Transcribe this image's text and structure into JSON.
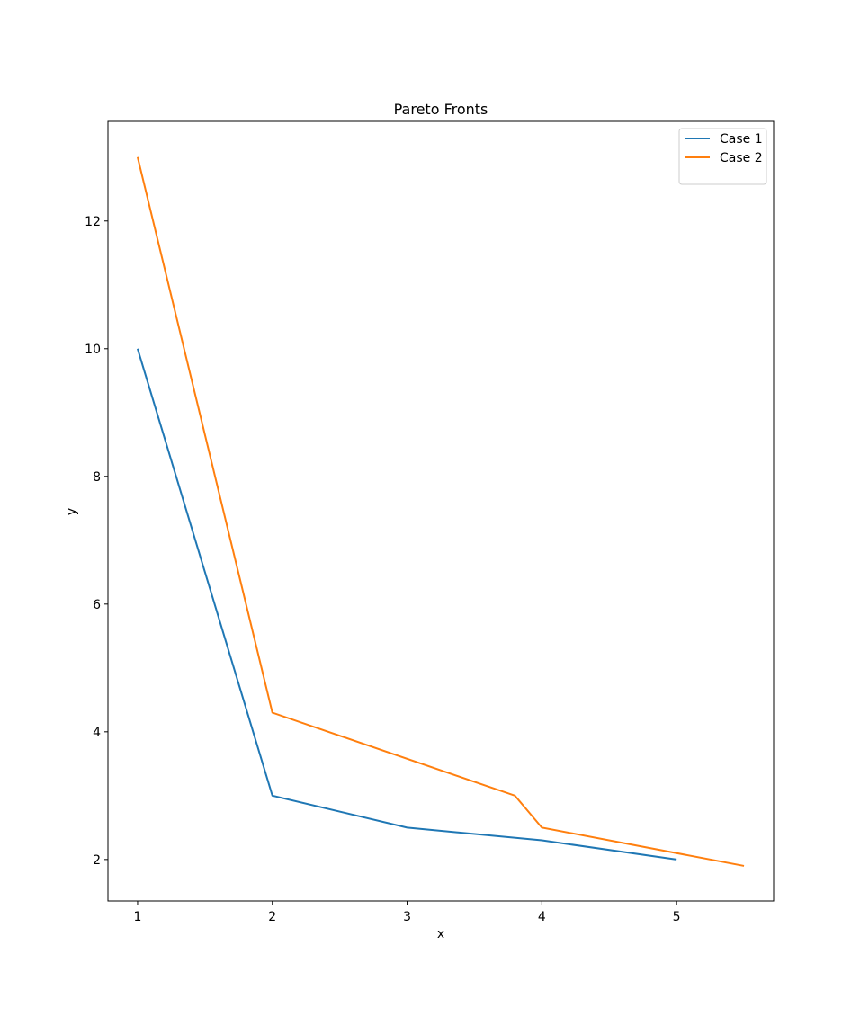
{
  "chart_data": {
    "type": "line",
    "title": "Pareto Fronts",
    "x_label": "x",
    "y_label": "y",
    "series": [
      {
        "name": "Case 1",
        "color": "#1f77b4",
        "x": [
          1,
          2,
          3,
          4,
          5
        ],
        "values": [
          10,
          3,
          2.5,
          2.3,
          2
        ]
      },
      {
        "name": "Case 2",
        "color": "#ff7f0e",
        "x": [
          1,
          2,
          3.8,
          4,
          5.5
        ],
        "values": [
          13,
          4.3,
          3,
          2.5,
          1.9
        ]
      }
    ],
    "xlim": [
      0.78,
      5.72
    ],
    "xticks": [
      1,
      2,
      3,
      4,
      5
    ],
    "ylim": [
      1.35,
      13.56
    ],
    "yticks": [
      2,
      4,
      6,
      8,
      10,
      12
    ],
    "grid": false,
    "legend": "upper right"
  }
}
